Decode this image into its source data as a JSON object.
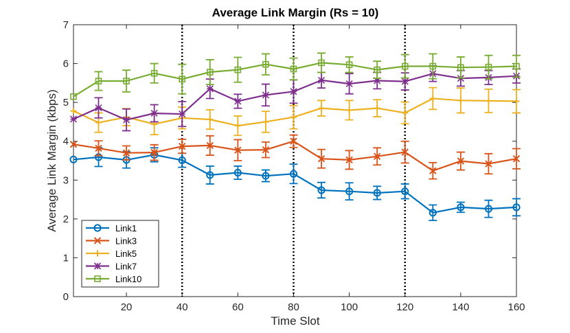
{
  "chart_data": {
    "type": "line",
    "title": "Average Link Margin (Rs = 10)",
    "xlabel": "Time Slot",
    "ylabel": "Average Link Margin (kbps)",
    "xlim": [
      1,
      160
    ],
    "ylim": [
      0,
      7
    ],
    "xticks": [
      20,
      40,
      60,
      80,
      100,
      120,
      140,
      160
    ],
    "yticks": [
      0,
      1,
      2,
      3,
      4,
      5,
      6,
      7
    ],
    "grid": false,
    "legend_position": "bottom-left",
    "vertical_lines": [
      40,
      80,
      120
    ],
    "x": [
      1,
      10,
      20,
      30,
      40,
      50,
      60,
      70,
      80,
      90,
      100,
      110,
      120,
      130,
      140,
      150,
      160
    ],
    "series": [
      {
        "name": "Link1",
        "color": "#0072BD",
        "marker": "circle",
        "values": [
          3.53,
          3.59,
          3.52,
          3.65,
          3.51,
          3.13,
          3.19,
          3.11,
          3.16,
          2.74,
          2.71,
          2.67,
          2.71,
          2.16,
          2.3,
          2.26,
          2.3
        ],
        "errors": [
          null,
          0.24,
          0.21,
          0.18,
          0.18,
          0.23,
          0.17,
          0.15,
          0.25,
          0.2,
          0.22,
          0.17,
          0.19,
          0.2,
          0.13,
          0.22,
          0.22
        ]
      },
      {
        "name": "Link3",
        "color": "#D95319",
        "marker": "x",
        "values": [
          3.92,
          3.82,
          3.7,
          3.71,
          3.87,
          3.89,
          3.77,
          3.78,
          4.0,
          3.55,
          3.52,
          3.61,
          3.72,
          3.24,
          3.49,
          3.42,
          3.55
        ],
        "errors": [
          null,
          0.19,
          0.18,
          0.2,
          0.18,
          0.25,
          0.27,
          0.2,
          0.16,
          0.24,
          0.24,
          0.22,
          0.28,
          0.21,
          0.23,
          0.26,
          0.26
        ]
      },
      {
        "name": "Link5",
        "color": "#EDB120",
        "marker": "plus",
        "values": [
          4.78,
          4.48,
          4.62,
          4.44,
          4.6,
          4.56,
          4.4,
          4.5,
          4.62,
          4.85,
          4.8,
          4.85,
          4.73,
          5.1,
          5.05,
          5.04,
          5.03
        ],
        "errors": [
          null,
          0.25,
          0.22,
          0.27,
          0.28,
          0.25,
          0.25,
          0.27,
          0.3,
          0.2,
          0.25,
          0.22,
          0.28,
          0.28,
          0.32,
          0.3,
          0.3
        ]
      },
      {
        "name": "Link7",
        "color": "#7E2F8E",
        "marker": "star",
        "values": [
          4.57,
          4.86,
          4.55,
          4.72,
          4.7,
          5.35,
          5.03,
          5.19,
          5.28,
          5.57,
          5.48,
          5.56,
          5.54,
          5.74,
          5.62,
          5.64,
          5.68
        ],
        "errors": [
          null,
          0.26,
          0.28,
          0.22,
          0.32,
          0.25,
          0.18,
          0.28,
          0.3,
          0.2,
          0.26,
          0.21,
          0.22,
          0.2,
          0.2,
          0.18,
          0.18
        ]
      },
      {
        "name": "Link10",
        "color": "#77AC30",
        "marker": "square",
        "values": [
          5.15,
          5.55,
          5.55,
          5.75,
          5.6,
          5.78,
          5.84,
          5.98,
          5.86,
          6.02,
          5.97,
          5.84,
          5.93,
          5.93,
          5.9,
          5.91,
          5.93
        ],
        "errors": [
          null,
          0.24,
          0.28,
          0.25,
          0.38,
          0.32,
          0.32,
          0.27,
          0.28,
          0.25,
          0.2,
          0.22,
          0.3,
          0.32,
          0.27,
          0.3,
          0.28
        ]
      }
    ]
  }
}
